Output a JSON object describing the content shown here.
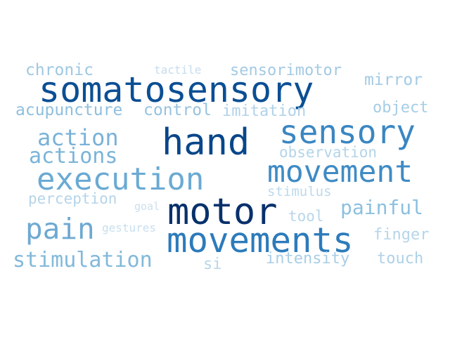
{
  "word_cloud": {
    "words": [
      {
        "text": "somatosensory",
        "color": "#0b4f94"
      },
      {
        "text": "hand",
        "color": "#08468a"
      },
      {
        "text": "motor",
        "color": "#08306b"
      },
      {
        "text": "movements",
        "color": "#2c7bbb"
      },
      {
        "text": "sensory",
        "color": "#3a86c2"
      },
      {
        "text": "movement",
        "color": "#3f8bc4"
      },
      {
        "text": "execution",
        "color": "#6aaad3"
      },
      {
        "text": "pain",
        "color": "#6fa9d2"
      },
      {
        "text": "action",
        "color": "#79b2d8"
      },
      {
        "text": "actions",
        "color": "#7ab4d9"
      },
      {
        "text": "stimulation",
        "color": "#82b9db"
      },
      {
        "text": "painful",
        "color": "#8cc0df"
      },
      {
        "text": "acupuncture",
        "color": "#8ebfde"
      },
      {
        "text": "control",
        "color": "#96c3e0"
      },
      {
        "text": "chronic",
        "color": "#9ec8e2"
      },
      {
        "text": "sensorimotor",
        "color": "#a3cae3"
      },
      {
        "text": "mirror",
        "color": "#a3cbe4"
      },
      {
        "text": "object",
        "color": "#a6cde5"
      },
      {
        "text": "imitation",
        "color": "#b0d2e8"
      },
      {
        "text": "observation",
        "color": "#b3d4e9"
      },
      {
        "text": "intensity",
        "color": "#a9cee6"
      },
      {
        "text": "touch",
        "color": "#afd1e7"
      },
      {
        "text": "finger",
        "color": "#b6d5ea"
      },
      {
        "text": "tool",
        "color": "#b8d6ea"
      },
      {
        "text": "perception",
        "color": "#b5d4e9"
      },
      {
        "text": "stimulus",
        "color": "#bdd9ec"
      },
      {
        "text": "si",
        "color": "#b8d6ea"
      },
      {
        "text": "tactile",
        "color": "#c6ddee"
      },
      {
        "text": "gestures",
        "color": "#c8dfef"
      },
      {
        "text": "goal",
        "color": "#cbe0f0"
      }
    ]
  }
}
